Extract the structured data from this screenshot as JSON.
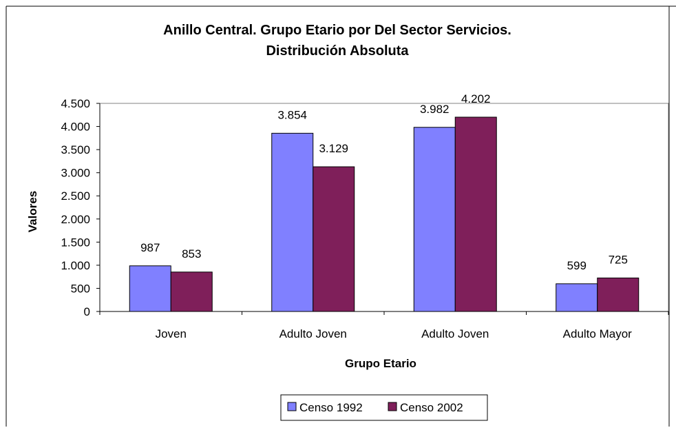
{
  "chart_data": {
    "type": "bar",
    "title": [
      "Anillo Central. Grupo Etario por Del Sector Servicios.",
      "Distribución Absoluta"
    ],
    "xlabel": "Grupo Etario",
    "ylabel": "Valores",
    "categories": [
      "Joven",
      "Adulto Joven",
      "Adulto Joven",
      "Adulto Mayor"
    ],
    "series": [
      {
        "name": "Censo 1992",
        "values": [
          987,
          3854,
          3982,
          599
        ],
        "color": "#8080ff"
      },
      {
        "name": "Censo 2002",
        "values": [
          853,
          3129,
          4202,
          725
        ],
        "color": "#7f1f5a"
      }
    ],
    "data_labels": [
      [
        "987",
        "3.854",
        "3.982",
        "599"
      ],
      [
        "853",
        "3.129",
        "4.202",
        "725"
      ]
    ],
    "ylim": [
      0,
      4500
    ],
    "yticks": [
      0,
      500,
      1000,
      1500,
      2000,
      2500,
      3000,
      3500,
      4000,
      4500
    ],
    "ytick_labels": [
      "0",
      "500",
      "1.000",
      "1.500",
      "2.000",
      "2.500",
      "3.000",
      "3.500",
      "4.000",
      "4.500"
    ],
    "grid": false,
    "legend_position": "bottom",
    "plot_background": "#ffffff"
  }
}
